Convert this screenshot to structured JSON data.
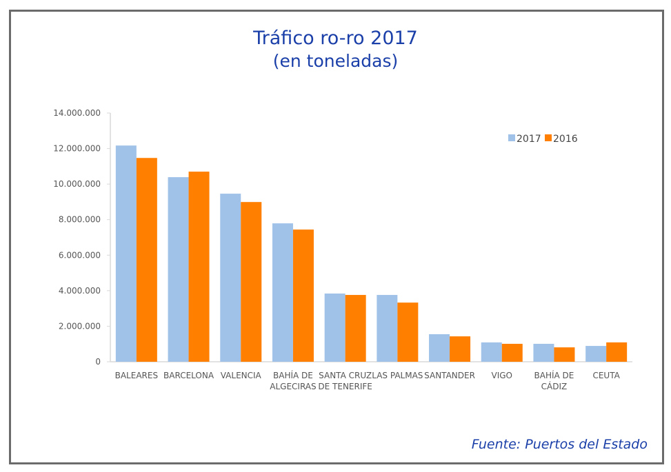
{
  "chart_data": {
    "type": "bar",
    "title": "Tráfico ro-ro 2017",
    "subtitle": "(en toneladas)",
    "source": "Fuente: Puertos del Estado",
    "categories": [
      [
        "BALEARES"
      ],
      [
        "BARCELONA"
      ],
      [
        "VALENCIA"
      ],
      [
        "BAHÍA DE",
        "ALGECIRAS"
      ],
      [
        "SANTA CRUZ",
        "DE TENERIFE"
      ],
      [
        "LAS PALMAS"
      ],
      [
        "SANTANDER"
      ],
      [
        "VIGO"
      ],
      [
        "BAHÍA DE",
        "CÁDIZ"
      ],
      [
        "CEUTA"
      ]
    ],
    "series": [
      {
        "name": "2017",
        "color": "#a0c2e9",
        "values": [
          12170000,
          10390000,
          9460000,
          7790000,
          3840000,
          3760000,
          1550000,
          1090000,
          1010000,
          890000
        ]
      },
      {
        "name": "2016",
        "color": "#ff7f00",
        "values": [
          11470000,
          10700000,
          8990000,
          7440000,
          3760000,
          3330000,
          1430000,
          1010000,
          810000,
          1090000
        ]
      }
    ],
    "yticks": [
      "0",
      "2.000.000",
      "4.000.000",
      "6.000.000",
      "8.000.000",
      "10.000.000",
      "12.000.000",
      "14.000.000"
    ],
    "ylim": [
      0,
      14000000
    ],
    "grid": false,
    "legend": "top-right"
  }
}
